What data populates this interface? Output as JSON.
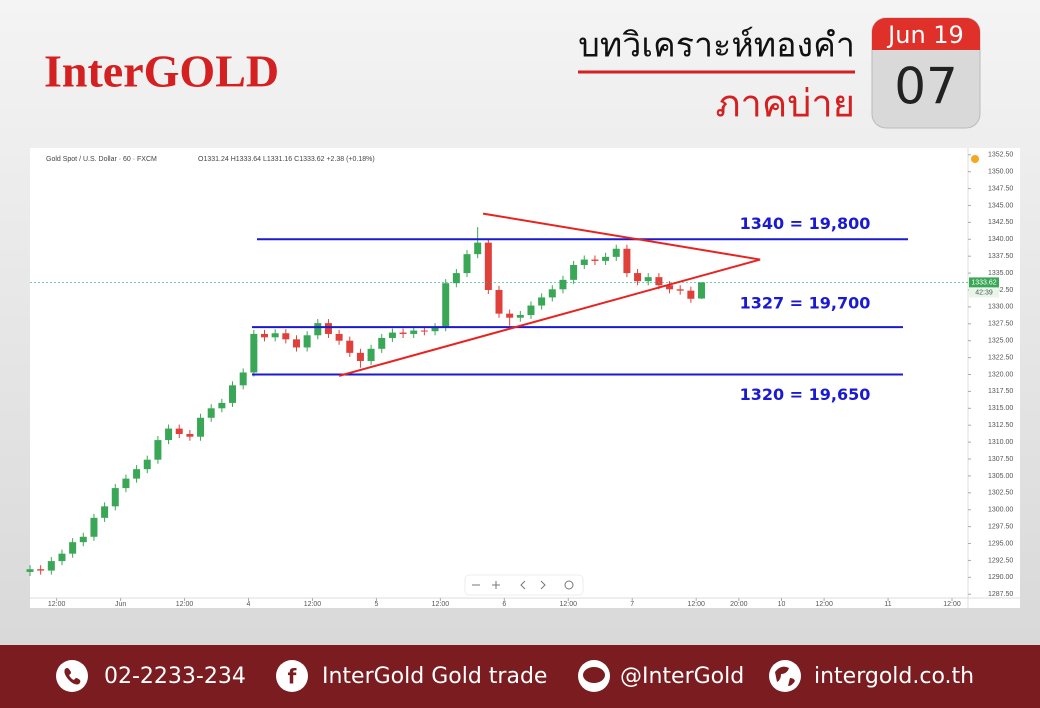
{
  "header": {
    "logo": "InterGOLD",
    "title_line1": "บทวิเคราะห์ทองคำ",
    "title_line2": "ภาคบ่าย",
    "date_month": "Jun 19",
    "date_day": "07"
  },
  "chart_data": {
    "type": "candlestick",
    "legend": "Gold Spot / U.S. Dollar · 60 · FXCM",
    "legend_ohlc": "O1331.24 H1333.64 L1331.16 C1333.62 +2.38 (+0.18%)",
    "up_color": "#3aa757",
    "down_color": "#e0403a",
    "xlim": [
      0,
      176
    ],
    "ylim": [
      1286.5,
      1353.5
    ],
    "xticks": [
      {
        "value": 5,
        "label": "12:00"
      },
      {
        "value": 17,
        "label": "Jun"
      },
      {
        "value": 29,
        "label": "12:00"
      },
      {
        "value": 41,
        "label": "4"
      },
      {
        "value": 53,
        "label": "12:00"
      },
      {
        "value": 65,
        "label": "5"
      },
      {
        "value": 77,
        "label": "12:00"
      },
      {
        "value": 89,
        "label": "6"
      },
      {
        "value": 101,
        "label": "12:00"
      },
      {
        "value": 113,
        "label": "7"
      },
      {
        "value": 125,
        "label": "12:00"
      },
      {
        "value": 133,
        "label": "20:00"
      },
      {
        "value": 141,
        "label": "10"
      },
      {
        "value": 149,
        "label": "12:00"
      },
      {
        "value": 161,
        "label": "11"
      },
      {
        "value": 173,
        "label": "12:00"
      }
    ],
    "yticks": [
      {
        "value": 1287.5,
        "label": "1287.50"
      },
      {
        "value": 1290,
        "label": "1290.00"
      },
      {
        "value": 1292.5,
        "label": "1292.50"
      },
      {
        "value": 1295,
        "label": "1295.00"
      },
      {
        "value": 1297.5,
        "label": "1297.50"
      },
      {
        "value": 1300,
        "label": "1300.00"
      },
      {
        "value": 1302.5,
        "label": "1302.50"
      },
      {
        "value": 1305,
        "label": "1305.00"
      },
      {
        "value": 1307.5,
        "label": "1307.50"
      },
      {
        "value": 1310,
        "label": "1310.00"
      },
      {
        "value": 1312.5,
        "label": "1312.50"
      },
      {
        "value": 1315,
        "label": "1315.00"
      },
      {
        "value": 1317.5,
        "label": "1317.50"
      },
      {
        "value": 1320,
        "label": "1320.00"
      },
      {
        "value": 1322.5,
        "label": "1322.50"
      },
      {
        "value": 1325,
        "label": "1325.00"
      },
      {
        "value": 1327.5,
        "label": "1327.50"
      },
      {
        "value": 1330,
        "label": "1330.00"
      },
      {
        "value": 1332.5,
        "label": "1332.50"
      },
      {
        "value": 1335,
        "label": "1335.00"
      },
      {
        "value": 1337.5,
        "label": "1337.50"
      },
      {
        "value": 1340,
        "label": "1340.00"
      },
      {
        "value": 1342.5,
        "label": "1342.50"
      },
      {
        "value": 1345,
        "label": "1345.00"
      },
      {
        "value": 1347.5,
        "label": "1347.50"
      },
      {
        "value": 1350,
        "label": "1350.00"
      },
      {
        "value": 1352.5,
        "label": "1352.50"
      }
    ],
    "t": [
      0,
      2,
      4,
      6,
      8,
      10,
      12,
      14,
      16,
      18,
      20,
      22,
      24,
      26,
      28,
      30,
      32,
      34,
      36,
      38,
      40,
      42,
      44,
      46,
      48,
      50,
      52,
      54,
      56,
      58,
      60,
      62,
      64,
      66,
      68,
      70,
      72,
      74,
      76,
      78,
      80,
      82,
      84,
      86,
      88,
      90,
      92,
      94,
      96,
      98,
      100,
      102,
      104,
      106,
      108,
      110,
      112,
      114,
      116,
      118,
      120,
      122,
      124,
      126
    ],
    "open": [
      1290.8,
      1291.2,
      1291.0,
      1292.4,
      1293.5,
      1295.2,
      1296.0,
      1298.8,
      1300.5,
      1303.2,
      1304.6,
      1306.0,
      1307.4,
      1310.3,
      1312.0,
      1311.2,
      1310.8,
      1313.6,
      1315.0,
      1315.8,
      1318.4,
      1320.3,
      1326.0,
      1325.5,
      1326.1,
      1325.2,
      1324.0,
      1325.8,
      1327.6,
      1326.0,
      1325.0,
      1323.2,
      1322.0,
      1323.8,
      1325.4,
      1326.2,
      1326.0,
      1326.5,
      1326.4,
      1327.0,
      1333.5,
      1335.0,
      1337.8,
      1339.5,
      1332.5,
      1329.0,
      1328.4,
      1328.8,
      1330.2,
      1331.4,
      1332.6,
      1334.0,
      1336.2,
      1337.0,
      1336.8,
      1337.4,
      1338.6,
      1335.0,
      1333.8,
      1334.4,
      1333.2,
      1332.6,
      1332.4,
      1331.24
    ],
    "high": [
      1291.8,
      1291.8,
      1293.0,
      1294.1,
      1295.8,
      1296.6,
      1299.4,
      1301.1,
      1303.8,
      1305.2,
      1306.6,
      1308.0,
      1310.9,
      1312.6,
      1312.6,
      1311.8,
      1314.2,
      1315.6,
      1316.4,
      1319.0,
      1320.9,
      1326.6,
      1326.6,
      1326.7,
      1326.7,
      1325.8,
      1326.4,
      1328.2,
      1328.2,
      1326.6,
      1325.6,
      1323.8,
      1324.4,
      1326.0,
      1326.8,
      1326.8,
      1327.1,
      1327.1,
      1327.6,
      1334.1,
      1335.6,
      1338.4,
      1341.8,
      1340.1,
      1333.1,
      1329.6,
      1329.4,
      1330.8,
      1332.0,
      1333.2,
      1334.6,
      1336.8,
      1337.6,
      1337.6,
      1338.0,
      1339.2,
      1339.2,
      1335.6,
      1335.0,
      1335.0,
      1333.8,
      1333.2,
      1333.0,
      1333.64
    ],
    "low": [
      1290.2,
      1290.4,
      1290.4,
      1291.8,
      1292.9,
      1294.6,
      1295.4,
      1298.2,
      1299.9,
      1302.6,
      1304.0,
      1305.4,
      1306.8,
      1309.7,
      1310.6,
      1310.2,
      1310.2,
      1313.0,
      1314.4,
      1315.2,
      1317.8,
      1319.7,
      1324.9,
      1324.9,
      1324.6,
      1323.4,
      1323.4,
      1325.2,
      1325.4,
      1324.4,
      1322.6,
      1321.0,
      1321.4,
      1323.2,
      1324.8,
      1325.4,
      1325.4,
      1325.8,
      1325.8,
      1326.4,
      1332.9,
      1334.4,
      1337.2,
      1331.9,
      1328.4,
      1327.2,
      1327.8,
      1328.2,
      1329.6,
      1330.8,
      1332.0,
      1333.4,
      1335.6,
      1336.2,
      1336.2,
      1336.8,
      1334.4,
      1333.2,
      1333.2,
      1332.6,
      1332.0,
      1331.8,
      1330.6,
      1331.16
    ],
    "close": [
      1291.2,
      1291.0,
      1292.4,
      1293.5,
      1295.2,
      1296.0,
      1298.8,
      1300.5,
      1303.2,
      1304.6,
      1306.0,
      1307.4,
      1310.3,
      1312.0,
      1311.2,
      1310.8,
      1313.6,
      1315.0,
      1315.8,
      1318.4,
      1320.3,
      1326.0,
      1325.5,
      1326.1,
      1325.2,
      1324.0,
      1325.8,
      1327.6,
      1326.0,
      1325.0,
      1323.2,
      1322.0,
      1323.8,
      1325.4,
      1326.2,
      1326.0,
      1326.5,
      1326.4,
      1327.0,
      1333.5,
      1335.0,
      1337.8,
      1339.5,
      1332.5,
      1329.0,
      1328.4,
      1328.8,
      1330.2,
      1331.4,
      1332.6,
      1334.0,
      1336.2,
      1337.0,
      1336.8,
      1337.4,
      1338.6,
      1335.0,
      1333.8,
      1334.4,
      1333.2,
      1332.6,
      1332.4,
      1331.2,
      1333.62
    ],
    "levels": [
      {
        "value": 1340,
        "label": "1340 = 19,800"
      },
      {
        "value": 1327,
        "label": "1327 = 19,700"
      },
      {
        "value": 1320,
        "label": "1320 = 19,650"
      }
    ],
    "level_color": "#1a1ad0",
    "trendlines": [
      {
        "t": [
          85,
          137
        ],
        "values": [
          1343.8,
          1337
        ]
      },
      {
        "t": [
          58,
          137
        ],
        "values": [
          1319.8,
          1337
        ]
      }
    ],
    "trend_color": "#e8231f",
    "last": {
      "value": 1333.62,
      "label": "1333.62",
      "countdown": "42:39"
    }
  },
  "footer": {
    "phone": "02-2233-234",
    "facebook": "InterGold Gold trade",
    "line": "@InterGold",
    "web": "intergold.co.th"
  }
}
